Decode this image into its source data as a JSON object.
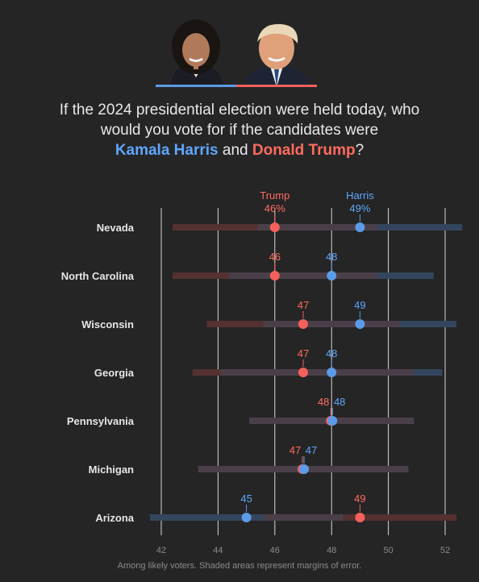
{
  "header": {
    "question_line1": "If the 2024 presidential election were held today, who",
    "question_line2": "would you vote for if the candidates were",
    "harris_name": "Kamala Harris",
    "conjunction": "and",
    "trump_name": "Donald Trump",
    "question_mark": "?"
  },
  "footnote": "Among likely voters. Shaded areas represent margins of error.",
  "colors": {
    "harris": "#5b9be8",
    "trump": "#f4605b",
    "harris_label": "#5fa6ff",
    "trump_label": "#ff6b5f",
    "harris_band": "#33465d",
    "trump_band": "#553131",
    "overlap_band": "#4a3f48",
    "gridline": "#d8d8d8"
  },
  "chart_data": {
    "type": "scatter",
    "style": "dot-plot",
    "x_ticks": [
      42,
      44,
      46,
      48,
      50,
      52
    ],
    "xlim": [
      41.6,
      52.6
    ],
    "grid": true,
    "legend": "inline-above-first-row",
    "series_labels": {
      "trump": "Trump",
      "harris": "Harris"
    },
    "rows": [
      {
        "state": "Nevada",
        "trump": 46,
        "trump_label": "46%",
        "trump_moe": [
          42.4,
          49.6
        ],
        "harris": 49,
        "harris_label": "49%",
        "harris_moe": [
          45.4,
          52.6
        ]
      },
      {
        "state": "North Carolina",
        "trump": 46,
        "trump_label": "46",
        "trump_moe": [
          42.4,
          49.6
        ],
        "harris": 48,
        "harris_label": "48",
        "harris_moe": [
          44.4,
          51.6
        ]
      },
      {
        "state": "Wisconsin",
        "trump": 47,
        "trump_label": "47",
        "trump_moe": [
          43.6,
          50.4
        ],
        "harris": 49,
        "harris_label": "49",
        "harris_moe": [
          45.6,
          52.4
        ]
      },
      {
        "state": "Georgia",
        "trump": 47,
        "trump_label": "47",
        "trump_moe": [
          43.1,
          50.9
        ],
        "harris": 48,
        "harris_label": "48",
        "harris_moe": [
          44.1,
          51.9
        ]
      },
      {
        "state": "Pennsylvania",
        "trump": 48,
        "trump_label": "48",
        "trump_moe": [
          45.1,
          50.9
        ],
        "harris": 48,
        "harris_label": "48",
        "harris_moe": [
          45.1,
          50.9
        ]
      },
      {
        "state": "Michigan",
        "trump": 47,
        "trump_label": "47",
        "trump_moe": [
          43.3,
          50.7
        ],
        "harris": 47,
        "harris_label": "47",
        "harris_moe": [
          43.3,
          50.7
        ]
      },
      {
        "state": "Arizona",
        "trump": 49,
        "trump_label": "49",
        "trump_moe": [
          45.6,
          52.4
        ],
        "harris": 45,
        "harris_label": "45",
        "harris_moe": [
          41.6,
          48.4
        ]
      }
    ]
  }
}
